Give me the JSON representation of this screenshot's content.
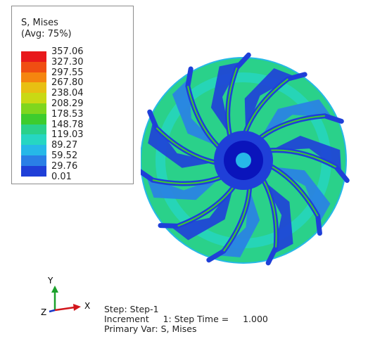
{
  "legend": {
    "title_line1": "S, Mises",
    "title_line2": "(Avg: 75%)",
    "values": [
      "357.06",
      "327.30",
      "297.55",
      "267.80",
      "238.04",
      "208.29",
      "178.53",
      "148.78",
      "119.03",
      "89.27",
      "59.52",
      "29.76",
      "0.01"
    ],
    "colors": [
      "#e8191b",
      "#f04e12",
      "#f5850f",
      "#e8bf12",
      "#c9d914",
      "#7fd61e",
      "#3dcc2e",
      "#2ad18a",
      "#26d6c2",
      "#26b8e8",
      "#2a7fe6",
      "#1f3fd8",
      "#0a14bb"
    ]
  },
  "triad": {
    "y_label": "Y",
    "x_label": "X",
    "z_label": "Z"
  },
  "step_info": {
    "step_line": "Step: Step-1",
    "increment_line": "Increment     1: Step Time =     1.000",
    "primary_var_line": "Primary Var: S, Mises"
  }
}
